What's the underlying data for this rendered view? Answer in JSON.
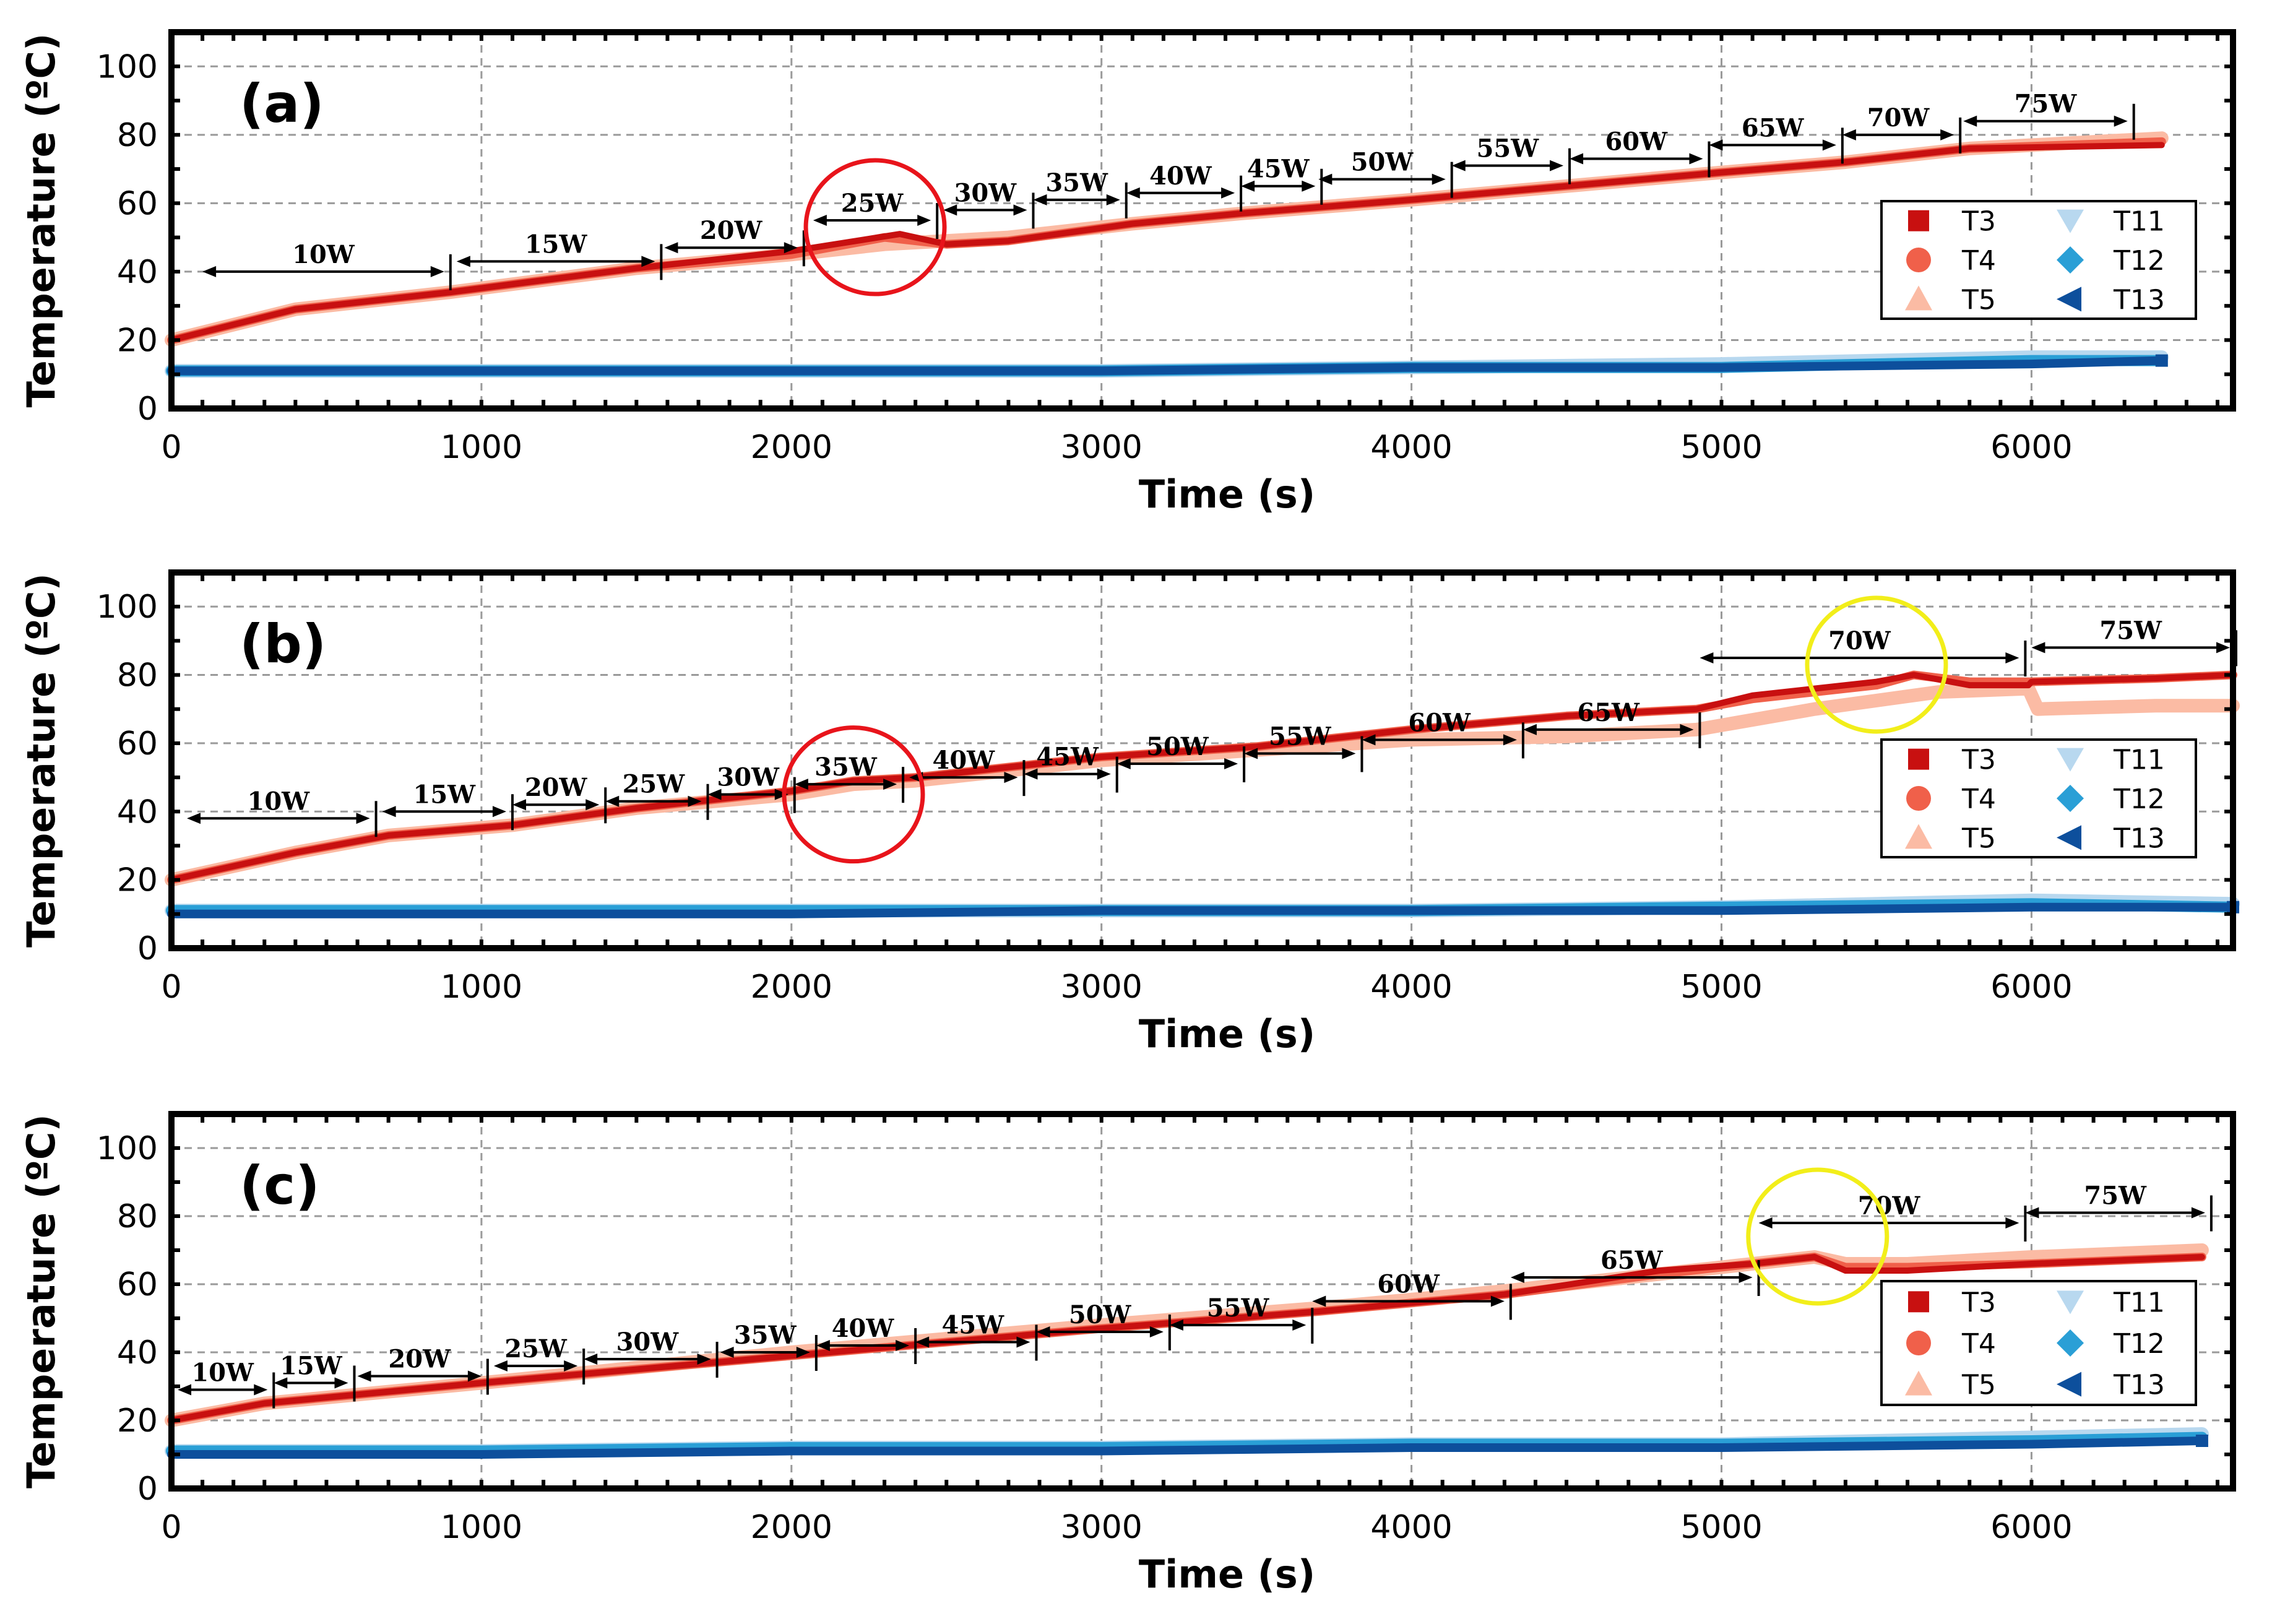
{
  "chart_data": [
    {
      "panel": "(a)",
      "type": "line",
      "xlabel": "Time (s)",
      "ylabel": "Temperature (ºC)",
      "xlim": [
        0,
        6650
      ],
      "ylim": [
        0,
        110
      ],
      "xticks": [
        "0",
        "1000",
        "2000",
        "3000",
        "4000",
        "5000",
        "6000"
      ],
      "yticks": [
        "0",
        "20",
        "40",
        "60",
        "80",
        "100"
      ],
      "grid": true,
      "legend": [
        "T3",
        "T4",
        "T5",
        "T11",
        "T12",
        "T13"
      ],
      "legend_position": "right",
      "circles": [
        {
          "x": 2270,
          "y": 53,
          "color": "red"
        }
      ],
      "power_steps": [
        {
          "label": "10W",
          "start": 100,
          "end": 880
        },
        {
          "label": "15W",
          "start": 920,
          "end": 1560
        },
        {
          "label": "20W",
          "start": 1590,
          "end": 2020
        },
        {
          "label": "25W",
          "start": 2070,
          "end": 2450
        },
        {
          "label": "30W",
          "start": 2490,
          "end": 2760
        },
        {
          "label": "35W",
          "start": 2780,
          "end": 3060
        },
        {
          "label": "40W",
          "start": 3080,
          "end": 3430
        },
        {
          "label": "45W",
          "start": 3450,
          "end": 3690
        },
        {
          "label": "50W",
          "start": 3700,
          "end": 4110
        },
        {
          "label": "55W",
          "start": 4130,
          "end": 4490
        },
        {
          "label": "60W",
          "start": 4510,
          "end": 4940
        },
        {
          "label": "65W",
          "start": 4960,
          "end": 5370
        },
        {
          "label": "70W",
          "start": 5390,
          "end": 5750
        },
        {
          "label": "75W",
          "start": 5780,
          "end": 6310
        }
      ],
      "series": [
        {
          "name": "T3",
          "color": "#c81010",
          "width": 10,
          "x": [
            0,
            400,
            900,
            1500,
            2000,
            2350,
            2500,
            2700,
            3100,
            3450,
            4000,
            4500,
            5000,
            5400,
            5800,
            6420
          ],
          "y": [
            20,
            29,
            34,
            41,
            46,
            51,
            48,
            49,
            54,
            57,
            61,
            65,
            69,
            72,
            76,
            77
          ]
        },
        {
          "name": "T4",
          "color": "#f0604a",
          "width": 14,
          "x": [
            0,
            400,
            900,
            1500,
            2000,
            2300,
            2500,
            2700,
            3100,
            3450,
            4000,
            4500,
            5000,
            5400,
            5800,
            6420
          ],
          "y": [
            20,
            29,
            34,
            41,
            45,
            50,
            48,
            49,
            54,
            57,
            61,
            65,
            69,
            72,
            76,
            78
          ]
        },
        {
          "name": "T5",
          "color": "#fbbba4",
          "width": 22,
          "x": [
            0,
            400,
            900,
            1500,
            2000,
            2300,
            2500,
            2700,
            3100,
            3450,
            4000,
            4500,
            5000,
            5400,
            5800,
            6420
          ],
          "y": [
            20,
            29,
            34,
            41,
            45,
            48,
            49,
            50,
            54,
            57,
            61,
            65,
            69,
            72,
            76,
            79
          ]
        },
        {
          "name": "T11",
          "color": "#b8d8ef",
          "width": 22,
          "x": [
            0,
            1000,
            2000,
            3000,
            4000,
            5000,
            6000,
            6420
          ],
          "y": [
            11,
            11,
            11,
            11,
            12,
            13,
            15,
            15
          ]
        },
        {
          "name": "T12",
          "color": "#2a9fd6",
          "width": 18,
          "x": [
            0,
            1000,
            2000,
            3000,
            4000,
            5000,
            6000,
            6420
          ],
          "y": [
            11,
            11,
            11,
            11,
            12,
            12,
            14,
            14
          ]
        },
        {
          "name": "T13",
          "color": "#0d4f9c",
          "width": 14,
          "x": [
            0,
            1000,
            2000,
            3000,
            4000,
            5000,
            6000,
            6420
          ],
          "y": [
            11,
            11,
            11,
            11,
            12,
            12,
            13,
            14
          ]
        }
      ]
    },
    {
      "panel": "(b)",
      "type": "line",
      "xlabel": "Time (s)",
      "ylabel": "Temperature (ºC)",
      "xlim": [
        0,
        6650
      ],
      "ylim": [
        0,
        110
      ],
      "xticks": [
        "0",
        "1000",
        "2000",
        "3000",
        "4000",
        "5000",
        "6000"
      ],
      "yticks": [
        "0",
        "20",
        "40",
        "60",
        "80",
        "100"
      ],
      "grid": true,
      "legend": [
        "T3",
        "T4",
        "T5",
        "T11",
        "T12",
        "T13"
      ],
      "legend_position": "right",
      "circles": [
        {
          "x": 2200,
          "y": 45,
          "color": "red"
        },
        {
          "x": 5500,
          "y": 83,
          "color": "yellow"
        }
      ],
      "power_steps": [
        {
          "label": "10W",
          "start": 50,
          "end": 640
        },
        {
          "label": "15W",
          "start": 680,
          "end": 1080
        },
        {
          "label": "20W",
          "start": 1100,
          "end": 1380
        },
        {
          "label": "25W",
          "start": 1400,
          "end": 1710
        },
        {
          "label": "30W",
          "start": 1730,
          "end": 1990
        },
        {
          "label": "35W",
          "start": 2010,
          "end": 2340
        },
        {
          "label": "40W",
          "start": 2380,
          "end": 2730
        },
        {
          "label": "45W",
          "start": 2750,
          "end": 3030
        },
        {
          "label": "50W",
          "start": 3050,
          "end": 3440
        },
        {
          "label": "55W",
          "start": 3460,
          "end": 3820
        },
        {
          "label": "60W",
          "start": 3840,
          "end": 4340
        },
        {
          "label": "65W",
          "start": 4360,
          "end": 4910
        },
        {
          "label": "70W",
          "start": 4930,
          "end": 5960
        },
        {
          "label": "75W",
          "start": 6000,
          "end": 6640
        }
      ],
      "series": [
        {
          "name": "T3",
          "color": "#c81010",
          "width": 10,
          "x": [
            0,
            400,
            700,
            1100,
            1500,
            2000,
            2200,
            2400,
            3000,
            3500,
            4000,
            4500,
            4920,
            5100,
            5500,
            5620,
            5800,
            5990,
            6000,
            6400,
            6650
          ],
          "y": [
            20,
            28,
            33,
            36,
            41,
            46,
            49,
            50,
            56,
            59,
            64,
            68,
            70,
            74,
            78,
            80,
            77,
            77,
            78,
            79,
            80
          ]
        },
        {
          "name": "T4",
          "color": "#f0604a",
          "width": 14,
          "x": [
            0,
            400,
            700,
            1100,
            1500,
            2000,
            2200,
            2400,
            3000,
            3500,
            4000,
            4500,
            4920,
            5100,
            5500,
            5620,
            5800,
            5990,
            6000,
            6400,
            6650
          ],
          "y": [
            20,
            28,
            33,
            36,
            41,
            46,
            49,
            50,
            56,
            59,
            64,
            68,
            70,
            73,
            77,
            80,
            78,
            78,
            78,
            79,
            80
          ]
        },
        {
          "name": "T5",
          "color": "#fbbba4",
          "width": 22,
          "x": [
            0,
            400,
            700,
            1100,
            1500,
            2000,
            2200,
            2400,
            3000,
            3500,
            4000,
            4500,
            4920,
            5300,
            5700,
            5990,
            6020,
            6400,
            6650
          ],
          "y": [
            20,
            28,
            33,
            36,
            41,
            45,
            48,
            49,
            55,
            58,
            61,
            62,
            64,
            70,
            75,
            76,
            70,
            71,
            71
          ]
        },
        {
          "name": "T11",
          "color": "#b8d8ef",
          "width": 22,
          "x": [
            0,
            1000,
            2000,
            3000,
            4000,
            5000,
            6000,
            6650
          ],
          "y": [
            11,
            11,
            11,
            11,
            11,
            12,
            14,
            13
          ]
        },
        {
          "name": "T12",
          "color": "#2a9fd6",
          "width": 18,
          "x": [
            0,
            1000,
            2000,
            3000,
            4000,
            5000,
            6000,
            6650
          ],
          "y": [
            11,
            11,
            11,
            11,
            11,
            12,
            13,
            12
          ]
        },
        {
          "name": "T13",
          "color": "#0d4f9c",
          "width": 14,
          "x": [
            0,
            1000,
            2000,
            3000,
            4000,
            5000,
            6000,
            6650
          ],
          "y": [
            10,
            10,
            10,
            11,
            11,
            11,
            12,
            12
          ]
        }
      ]
    },
    {
      "panel": "(c)",
      "type": "line",
      "xlabel": "Time (s)",
      "ylabel": "Temperature (ºC)",
      "xlim": [
        0,
        6650
      ],
      "ylim": [
        0,
        110
      ],
      "xticks": [
        "0",
        "1000",
        "2000",
        "3000",
        "4000",
        "5000",
        "6000"
      ],
      "yticks": [
        "0",
        "20",
        "40",
        "60",
        "80",
        "100"
      ],
      "grid": true,
      "legend": [
        "T3",
        "T4",
        "T5",
        "T11",
        "T12",
        "T13"
      ],
      "legend_position": "right",
      "circles": [
        {
          "x": 5310,
          "y": 74,
          "color": "yellow"
        }
      ],
      "power_steps": [
        {
          "label": "10W",
          "start": 20,
          "end": 310
        },
        {
          "label": "15W",
          "start": 330,
          "end": 570
        },
        {
          "label": "20W",
          "start": 600,
          "end": 1000
        },
        {
          "label": "25W",
          "start": 1040,
          "end": 1310
        },
        {
          "label": "30W",
          "start": 1330,
          "end": 1740
        },
        {
          "label": "35W",
          "start": 1770,
          "end": 2060
        },
        {
          "label": "40W",
          "start": 2080,
          "end": 2380
        },
        {
          "label": "45W",
          "start": 2400,
          "end": 2770
        },
        {
          "label": "50W",
          "start": 2790,
          "end": 3200
        },
        {
          "label": "55W",
          "start": 3220,
          "end": 3660
        },
        {
          "label": "60W",
          "start": 3680,
          "end": 4300
        },
        {
          "label": "65W",
          "start": 4320,
          "end": 5100
        },
        {
          "label": "70W",
          "start": 5120,
          "end": 5960
        },
        {
          "label": "75W",
          "start": 5980,
          "end": 6560
        }
      ],
      "series": [
        {
          "name": "T3",
          "color": "#c81010",
          "width": 10,
          "x": [
            0,
            300,
            1000,
            2000,
            2500,
            3000,
            3700,
            4300,
            4800,
            5100,
            5300,
            5400,
            5600,
            6000,
            6550
          ],
          "y": [
            20,
            25,
            31,
            39,
            43,
            47,
            52,
            57,
            64,
            66,
            68,
            64,
            64,
            66,
            68
          ]
        },
        {
          "name": "T4",
          "color": "#f0604a",
          "width": 14,
          "x": [
            0,
            300,
            1000,
            2000,
            2500,
            3000,
            3700,
            4300,
            4800,
            5100,
            5300,
            5400,
            5600,
            6000,
            6550
          ],
          "y": [
            20,
            25,
            31,
            39,
            43,
            47,
            52,
            57,
            63,
            66,
            68,
            65,
            65,
            66,
            68
          ]
        },
        {
          "name": "T5",
          "color": "#fbbba4",
          "width": 22,
          "x": [
            0,
            300,
            1000,
            2000,
            2500,
            3000,
            3700,
            4300,
            4800,
            5100,
            5300,
            5400,
            5600,
            6000,
            6550
          ],
          "y": [
            20,
            25,
            31,
            40,
            44,
            48,
            53,
            58,
            63,
            66,
            68,
            66,
            66,
            68,
            70
          ]
        },
        {
          "name": "T11",
          "color": "#b8d8ef",
          "width": 22,
          "x": [
            0,
            1000,
            2000,
            3000,
            4000,
            5000,
            6000,
            6550
          ],
          "y": [
            11,
            11,
            12,
            12,
            13,
            13,
            15,
            16
          ]
        },
        {
          "name": "T12",
          "color": "#2a9fd6",
          "width": 18,
          "x": [
            0,
            1000,
            2000,
            3000,
            4000,
            5000,
            6000,
            6550
          ],
          "y": [
            11,
            11,
            12,
            12,
            13,
            13,
            14,
            15
          ]
        },
        {
          "name": "T13",
          "color": "#0d4f9c",
          "width": 14,
          "x": [
            0,
            1000,
            2000,
            3000,
            4000,
            5000,
            6000,
            6550
          ],
          "y": [
            10,
            10,
            11,
            11,
            12,
            12,
            13,
            14
          ]
        }
      ]
    }
  ]
}
